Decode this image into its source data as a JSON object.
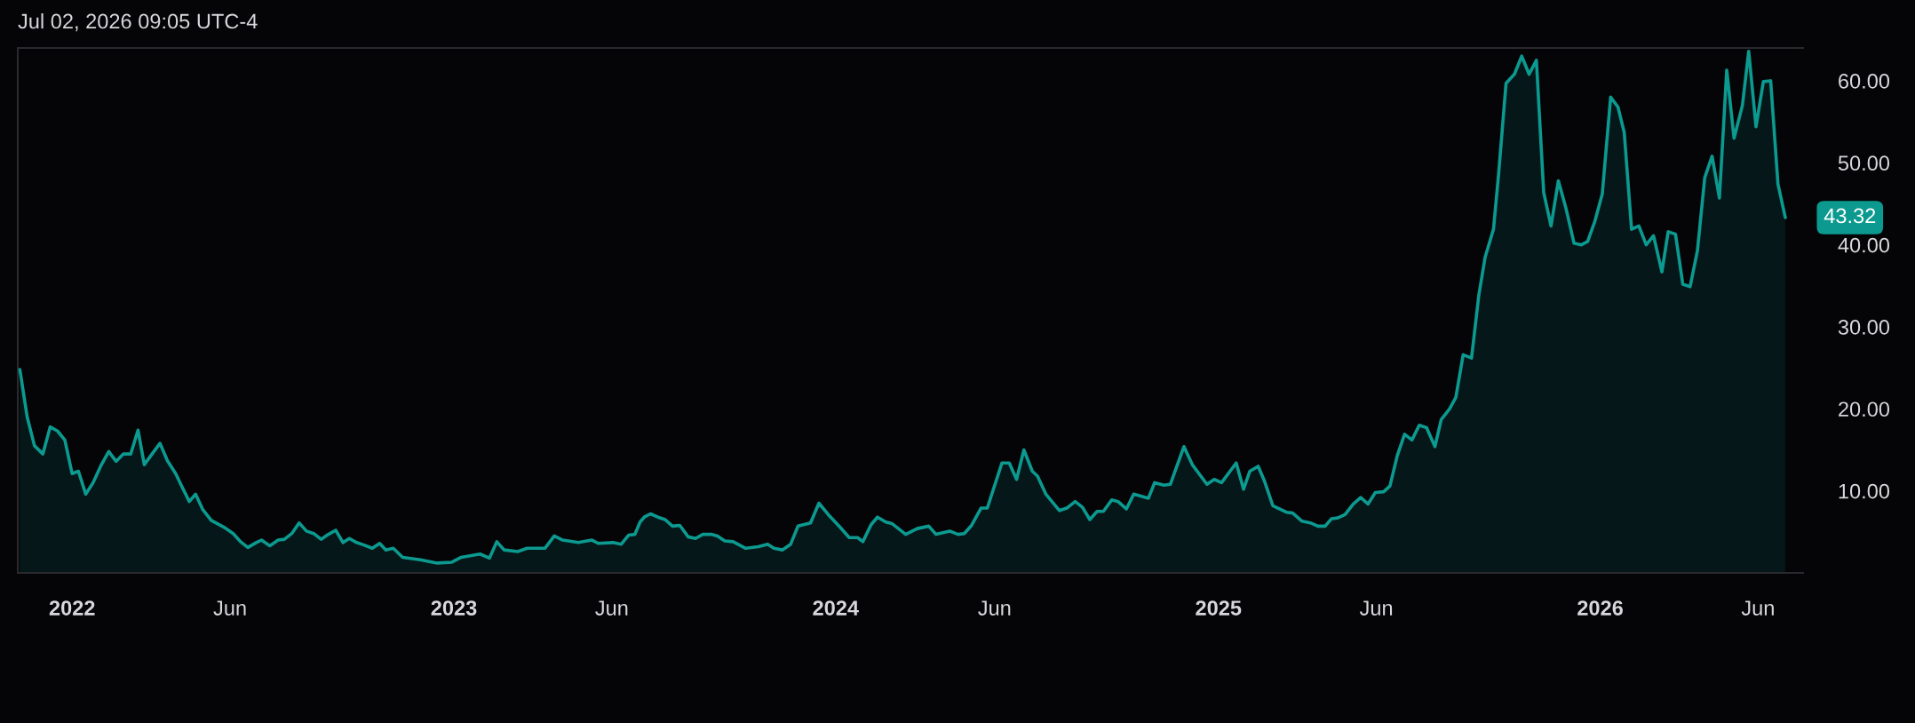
{
  "chart_data": {
    "type": "area",
    "annotations": [
      "Jul 02, 2026 09:05 UTC-4"
    ],
    "x": [
      "2021-11-12",
      "2021-11-19",
      "2021-11-26",
      "2021-12-04",
      "2021-12-11",
      "2021-12-18",
      "2021-12-25",
      "2022-01-01",
      "2022-01-07",
      "2022-01-14",
      "2022-01-21",
      "2022-01-29",
      "2022-02-05",
      "2022-02-12",
      "2022-02-19",
      "2022-02-26",
      "2022-03-05",
      "2022-03-11",
      "2022-03-19",
      "2022-03-26",
      "2022-04-02",
      "2022-04-10",
      "2022-04-16",
      "2022-04-23",
      "2022-04-29",
      "2022-05-06",
      "2022-05-14",
      "2022-05-27",
      "2022-06-04",
      "2022-06-11",
      "2022-06-18",
      "2022-06-26",
      "2022-07-01",
      "2022-07-09",
      "2022-07-17",
      "2022-07-23",
      "2022-07-30",
      "2022-08-06",
      "2022-08-13",
      "2022-08-20",
      "2022-08-27",
      "2022-09-03",
      "2022-09-10",
      "2022-09-17",
      "2022-09-23",
      "2022-09-30",
      "2022-10-07",
      "2022-10-15",
      "2022-10-22",
      "2022-10-28",
      "2022-11-04",
      "2022-11-13",
      "2022-11-30",
      "2022-12-16",
      "2022-12-30",
      "2023-01-08",
      "2023-01-26",
      "2023-02-04",
      "2023-02-11",
      "2023-02-18",
      "2023-03-03",
      "2023-03-12",
      "2023-03-29",
      "2023-04-07",
      "2023-04-15",
      "2023-04-30",
      "2023-05-13",
      "2023-05-19",
      "2023-06-02",
      "2023-06-10",
      "2023-06-17",
      "2023-06-23",
      "2023-06-28",
      "2023-07-02",
      "2023-07-08",
      "2023-07-15",
      "2023-07-22",
      "2023-07-29",
      "2023-08-05",
      "2023-08-13",
      "2023-08-20",
      "2023-08-27",
      "2023-09-04",
      "2023-09-10",
      "2023-09-17",
      "2023-09-25",
      "2023-10-07",
      "2023-10-19",
      "2023-10-28",
      "2023-11-03",
      "2023-11-11",
      "2023-11-19",
      "2023-11-26",
      "2023-12-08",
      "2023-12-16",
      "2023-12-25",
      "2024-01-05",
      "2024-01-14",
      "2024-01-22",
      "2024-01-27",
      "2024-02-04",
      "2024-02-10",
      "2024-02-18",
      "2024-02-24",
      "2024-03-08",
      "2024-03-19",
      "2024-03-30",
      "2024-04-06",
      "2024-04-19",
      "2024-04-27",
      "2024-05-03",
      "2024-05-10",
      "2024-05-19",
      "2024-05-25",
      "2024-06-08",
      "2024-06-15",
      "2024-06-22",
      "2024-06-29",
      "2024-07-07",
      "2024-07-12",
      "2024-07-20",
      "2024-08-02",
      "2024-08-09",
      "2024-08-17",
      "2024-08-24",
      "2024-08-31",
      "2024-09-07",
      "2024-09-13",
      "2024-09-21",
      "2024-09-27",
      "2024-10-05",
      "2024-10-12",
      "2024-10-26",
      "2024-11-01",
      "2024-11-10",
      "2024-11-16",
      "2024-11-29",
      "2024-12-07",
      "2024-12-21",
      "2024-12-28",
      "2025-01-04",
      "2025-01-18",
      "2025-01-25",
      "2025-01-31",
      "2025-02-08",
      "2025-02-14",
      "2025-02-22",
      "2025-03-07",
      "2025-03-13",
      "2025-03-22",
      "2025-03-30",
      "2025-04-06",
      "2025-04-13",
      "2025-04-19",
      "2025-04-25",
      "2025-05-02",
      "2025-05-10",
      "2025-05-17",
      "2025-05-24",
      "2025-05-31",
      "2025-06-08",
      "2025-06-14",
      "2025-06-21",
      "2025-06-28",
      "2025-07-05",
      "2025-07-12",
      "2025-07-19",
      "2025-07-27",
      "2025-08-02",
      "2025-08-10",
      "2025-08-16",
      "2025-08-23",
      "2025-08-31",
      "2025-09-07",
      "2025-09-13",
      "2025-09-21",
      "2025-09-26",
      "2025-10-03",
      "2025-10-11",
      "2025-10-18",
      "2025-10-25",
      "2025-11-01",
      "2025-11-08",
      "2025-11-15",
      "2025-11-22",
      "2025-11-29",
      "2025-12-07",
      "2025-12-14",
      "2025-12-20",
      "2025-12-27",
      "2026-01-03",
      "2026-01-11",
      "2026-01-18",
      "2026-01-24",
      "2026-01-31",
      "2026-02-07",
      "2026-02-14",
      "2026-02-21",
      "2026-03-01",
      "2026-03-07",
      "2026-03-14",
      "2026-03-21",
      "2026-03-28",
      "2026-04-04",
      "2026-04-11",
      "2026-04-18",
      "2026-04-25",
      "2026-05-02",
      "2026-05-09",
      "2026-05-17",
      "2026-05-23",
      "2026-05-30",
      "2026-06-06",
      "2026-06-13",
      "2026-06-20",
      "2026-06-27"
    ],
    "series": [
      {
        "color": "#0c9a90",
        "values": [
          24.8,
          19.0,
          15.5,
          14.5,
          17.8,
          17.3,
          16.2,
          12.1,
          12.4,
          9.6,
          11.0,
          13.2,
          14.8,
          13.6,
          14.5,
          14.5,
          17.4,
          13.2,
          14.6,
          15.8,
          13.7,
          12.1,
          10.5,
          8.7,
          9.6,
          7.7,
          6.4,
          5.5,
          4.8,
          3.8,
          3.1,
          3.7,
          4.0,
          3.3,
          4.0,
          4.1,
          4.8,
          6.1,
          5.1,
          4.8,
          4.1,
          4.7,
          5.2,
          3.7,
          4.2,
          3.7,
          3.4,
          3.0,
          3.6,
          2.8,
          3.0,
          1.9,
          1.6,
          1.2,
          1.3,
          1.9,
          2.3,
          1.8,
          3.8,
          2.8,
          2.6,
          3.0,
          3.0,
          4.5,
          4.0,
          3.7,
          4.0,
          3.6,
          3.7,
          3.5,
          4.6,
          4.7,
          6.2,
          6.8,
          7.2,
          6.8,
          6.5,
          5.7,
          5.8,
          4.4,
          4.2,
          4.7,
          4.7,
          4.5,
          3.9,
          3.8,
          3.0,
          3.2,
          3.5,
          3.0,
          2.8,
          3.5,
          5.7,
          6.1,
          8.5,
          7.1,
          5.6,
          4.3,
          4.3,
          3.8,
          5.9,
          6.8,
          6.2,
          6.0,
          4.7,
          5.4,
          5.7,
          4.7,
          5.1,
          4.7,
          4.8,
          5.8,
          7.9,
          7.9,
          13.4,
          13.4,
          11.4,
          15.0,
          12.4,
          11.8,
          9.6,
          7.6,
          7.9,
          8.7,
          8.0,
          6.5,
          7.5,
          7.5,
          8.9,
          8.7,
          7.8,
          9.6,
          9.1,
          11.0,
          10.7,
          10.8,
          15.4,
          13.2,
          10.8,
          11.4,
          11.0,
          13.4,
          10.2,
          12.4,
          13.0,
          11.2,
          8.2,
          7.4,
          7.3,
          6.3,
          6.1,
          5.7,
          5.7,
          6.6,
          6.7,
          7.1,
          8.4,
          9.2,
          8.4,
          9.8,
          9.9,
          10.6,
          14.3,
          16.9,
          16.2,
          18.0,
          17.7,
          15.4,
          18.7,
          20.0,
          21.4,
          26.6,
          26.2,
          33.9,
          38.5,
          41.9,
          48.8,
          59.7,
          60.8,
          63.0,
          60.8,
          62.5,
          46.4,
          42.3,
          47.8,
          44.6,
          40.2,
          40.0,
          40.4,
          42.9,
          46.2,
          58.0,
          56.8,
          53.7,
          41.9,
          42.3,
          40.0,
          41.1,
          36.7,
          41.6,
          41.3,
          35.2,
          34.9,
          39.3,
          48.2,
          50.8,
          45.7,
          61.3,
          53.0,
          57.0,
          63.6,
          54.4,
          59.9,
          60.0,
          47.4,
          43.32
        ],
        "value_labels": [
          null,
          null,
          null,
          null,
          null,
          null,
          null,
          null,
          null,
          null,
          null,
          null,
          null,
          null,
          null,
          null,
          null,
          null,
          null,
          null,
          null,
          null,
          null,
          null,
          null,
          null,
          null,
          null,
          null,
          null,
          null,
          null,
          null,
          null,
          null,
          null,
          null,
          null,
          null,
          null,
          null,
          null,
          null,
          null,
          null,
          null,
          null,
          null,
          null,
          null,
          null,
          null,
          null,
          null,
          null,
          null,
          null,
          null,
          null,
          null,
          null,
          null,
          null,
          null,
          null,
          null,
          null,
          null,
          null,
          null,
          null,
          null,
          null,
          null,
          null,
          null,
          null,
          null,
          null,
          null,
          null,
          null,
          null,
          null,
          null,
          null,
          null,
          null,
          null,
          null,
          null,
          null,
          null,
          null,
          null,
          null,
          null,
          null,
          null,
          null,
          null,
          null,
          null,
          null,
          null,
          null,
          null,
          null,
          null,
          null,
          null,
          null,
          null,
          null,
          null,
          null,
          null,
          null,
          null,
          null,
          null,
          null,
          null,
          null,
          null,
          null,
          null,
          null,
          null,
          null,
          null,
          null,
          null,
          null,
          null,
          null,
          null,
          null,
          null,
          null,
          null,
          null,
          null,
          null,
          null,
          null,
          null,
          null,
          null,
          null,
          null,
          null,
          null,
          null,
          null,
          null,
          null,
          null,
          null,
          null,
          null,
          null,
          null,
          null,
          null,
          null,
          null,
          null,
          null,
          null,
          null,
          null,
          null,
          null,
          null,
          null,
          null,
          null,
          null,
          null,
          null,
          null,
          null,
          null,
          null,
          null,
          null,
          null,
          null,
          null,
          null,
          null,
          null,
          null,
          null,
          null,
          null,
          null,
          null,
          null,
          null,
          null,
          null,
          null,
          null,
          null,
          null,
          null,
          null,
          null,
          null,
          null,
          null,
          null,
          null,
          "43.32"
        ]
      }
    ],
    "xlim": [
      "2021-11-10",
      "2026-07-14"
    ],
    "ylim": [
      0,
      64
    ],
    "xticks": [
      {
        "value": "2022-01-01",
        "label": "2022"
      },
      {
        "value": "2022-06-01",
        "label": "Jun"
      },
      {
        "value": "2023-01-01",
        "label": "2023"
      },
      {
        "value": "2023-06-01",
        "label": "Jun"
      },
      {
        "value": "2024-01-01",
        "label": "2024"
      },
      {
        "value": "2024-06-01",
        "label": "Jun"
      },
      {
        "value": "2025-01-01",
        "label": "2025"
      },
      {
        "value": "2025-06-01",
        "label": "Jun"
      },
      {
        "value": "2026-01-01",
        "label": "2026"
      },
      {
        "value": "2026-06-01",
        "label": "Jun"
      }
    ],
    "yticks": [
      {
        "value": 10,
        "label": "10.00"
      },
      {
        "value": 20,
        "label": "20.00"
      },
      {
        "value": 30,
        "label": "30.00"
      },
      {
        "value": 40,
        "label": "40.00"
      },
      {
        "value": 50,
        "label": "50.00"
      },
      {
        "value": 60,
        "label": "60.00"
      }
    ],
    "grid": false,
    "legend": false
  }
}
